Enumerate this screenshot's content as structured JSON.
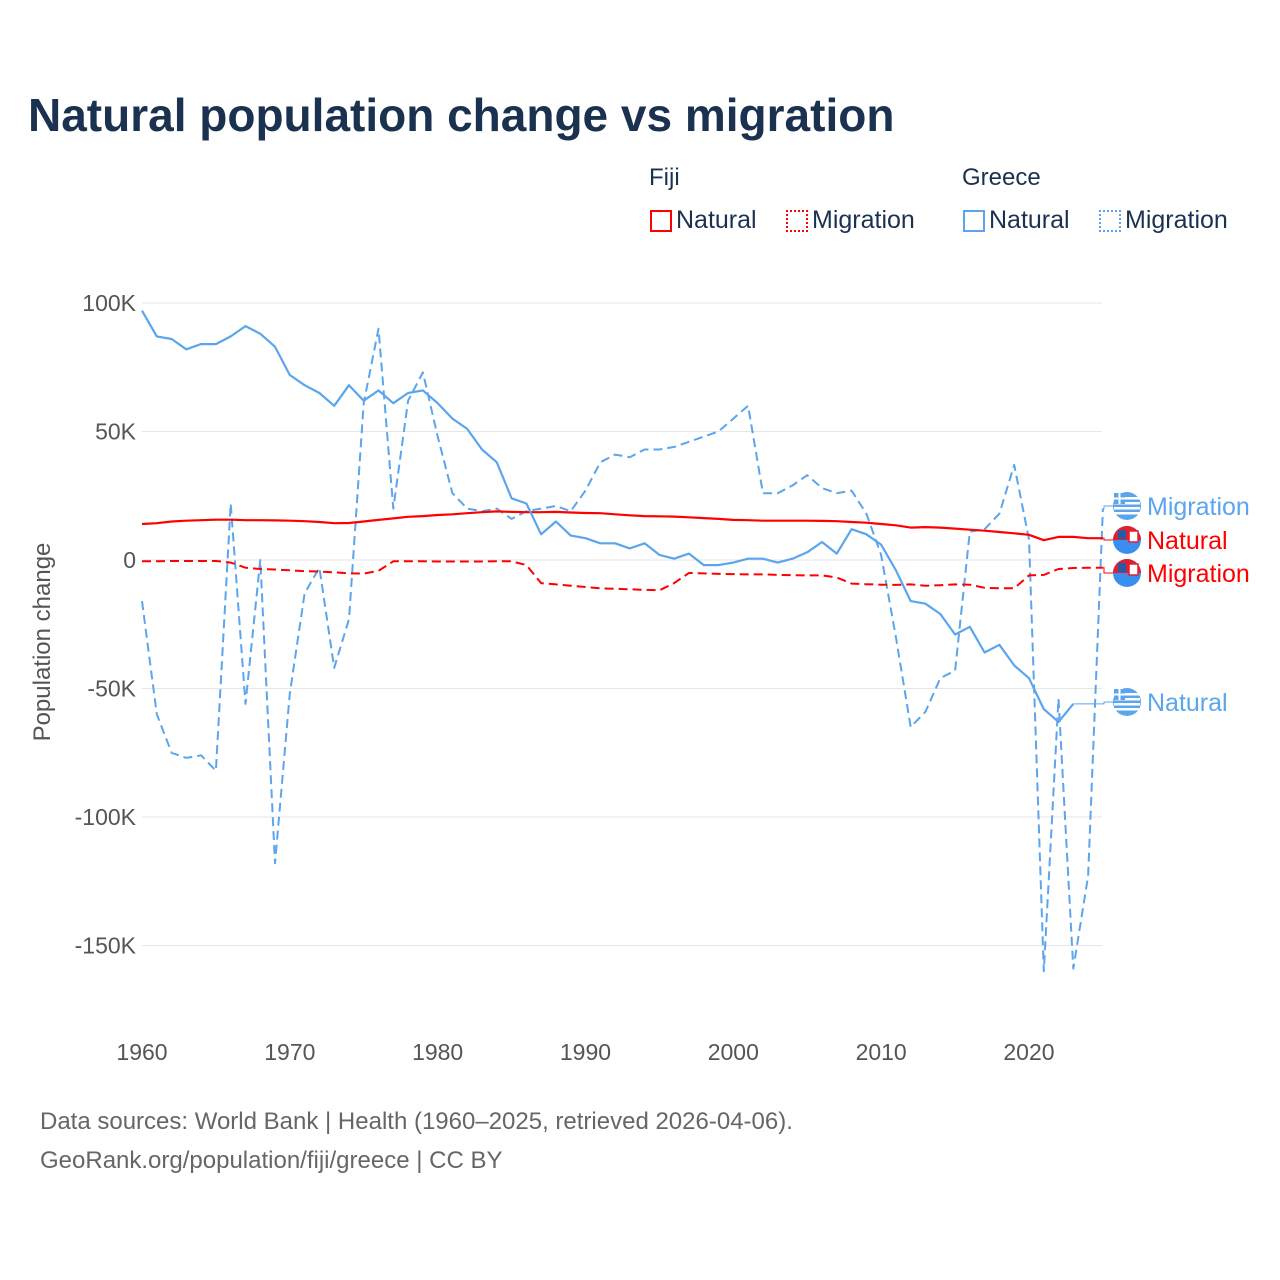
{
  "title": "Natural population change vs migration",
  "legend": {
    "groups": [
      {
        "name": "Fiji",
        "items": [
          {
            "label": "Natural",
            "style": "solid"
          },
          {
            "label": "Migration",
            "style": "dotted"
          }
        ],
        "color": "#ff0000"
      },
      {
        "name": "Greece",
        "items": [
          {
            "label": "Natural",
            "style": "solid"
          },
          {
            "label": "Migration",
            "style": "dotted"
          }
        ],
        "color": "#5aa5ee"
      }
    ]
  },
  "footer": {
    "line1": "Data sources: World Bank | Health (1960–2025, retrieved 2026-04-06).",
    "line2": "GeoRank.org/population/fiji/greece | CC BY"
  },
  "chart_data": {
    "type": "line",
    "title": "Natural population change vs migration",
    "xlabel": "",
    "ylabel": "Population change",
    "xlim": [
      1960,
      2025
    ],
    "ylim": [
      -160000,
      100000
    ],
    "xticks": [
      1960,
      1970,
      1980,
      1990,
      2000,
      2010,
      2020
    ],
    "yticks": [
      {
        "v": 100000,
        "label": "100K"
      },
      {
        "v": 50000,
        "label": "50K"
      },
      {
        "v": 0,
        "label": "0"
      },
      {
        "v": -50000,
        "label": "-50K"
      },
      {
        "v": -100000,
        "label": "-100K"
      },
      {
        "v": -150000,
        "label": "-150K"
      }
    ],
    "grid": true,
    "legend_position": "top-right",
    "series": [
      {
        "name": "Greece Migration",
        "end_label": "Migration",
        "country": "Greece",
        "color": "#5aa5ee",
        "dash": true,
        "start": 1960,
        "values": [
          -16000,
          -60000,
          -75000,
          -77000,
          -76000,
          -82000,
          22000,
          -56000,
          0,
          -118000,
          -52000,
          -13000,
          -3000,
          -42000,
          -23000,
          61000,
          90000,
          20000,
          62000,
          73000,
          48000,
          26000,
          20000,
          19000,
          20000,
          16000,
          19000,
          20000,
          21000,
          19000,
          27000,
          38000,
          41000,
          40000,
          43000,
          43000,
          44000,
          46000,
          48000,
          50000,
          55000,
          60000,
          26000,
          26000,
          29000,
          33000,
          28000,
          26000,
          27000,
          18000,
          2000,
          -30000,
          -65000,
          -59000,
          -46000,
          -43000,
          11000,
          12000,
          18000,
          37000,
          8000,
          -160000,
          -54000,
          -159000,
          -123000,
          20000
        ]
      },
      {
        "name": "Fiji Natural",
        "end_label": "Natural",
        "country": "Fiji",
        "color": "#ff0000",
        "dash": false,
        "start": 1960,
        "values": [
          14000,
          14300,
          15000,
          15300,
          15500,
          15700,
          15700,
          15500,
          15500,
          15400,
          15300,
          15100,
          14800,
          14300,
          14400,
          15000,
          15600,
          16200,
          16800,
          17100,
          17500,
          17800,
          18200,
          18600,
          18900,
          18700,
          18600,
          18600,
          18700,
          18500,
          18300,
          18200,
          17800,
          17400,
          17100,
          17000,
          16900,
          16600,
          16300,
          16000,
          15600,
          15500,
          15300,
          15300,
          15300,
          15300,
          15200,
          15100,
          14800,
          14500,
          14000,
          13500,
          12600,
          12800,
          12600,
          12200,
          11800,
          11400,
          10900,
          10400,
          9800,
          7700,
          9000,
          9000,
          8500,
          8500
        ]
      },
      {
        "name": "Fiji Migration",
        "end_label": "Migration",
        "country": "Fiji",
        "color": "#ff0000",
        "dash": true,
        "start": 1960,
        "values": [
          -500,
          -500,
          -400,
          -400,
          -400,
          -400,
          -1000,
          -3000,
          -3500,
          -3700,
          -4000,
          -4300,
          -4500,
          -4800,
          -5200,
          -5300,
          -4200,
          -500,
          -500,
          -500,
          -600,
          -600,
          -600,
          -600,
          -500,
          -500,
          -2000,
          -9000,
          -9500,
          -10000,
          -10500,
          -11000,
          -11200,
          -11400,
          -11600,
          -11800,
          -9000,
          -5000,
          -5200,
          -5400,
          -5500,
          -5600,
          -5600,
          -5800,
          -5900,
          -6000,
          -6000,
          -6800,
          -9200,
          -9400,
          -9600,
          -9700,
          -9500,
          -10000,
          -9800,
          -9500,
          -9600,
          -10800,
          -11000,
          -11000,
          -6000,
          -5800,
          -3500,
          -3100,
          -3000,
          -3000
        ]
      },
      {
        "name": "Greece Natural",
        "end_label": "Natural",
        "country": "Greece",
        "color": "#5aa5ee",
        "dash": false,
        "start": 1960,
        "values": [
          97000,
          87000,
          86000,
          82000,
          84000,
          84000,
          87000,
          91000,
          88000,
          83000,
          72000,
          68000,
          65000,
          60000,
          68000,
          62000,
          66000,
          61000,
          65000,
          66000,
          61000,
          55000,
          51000,
          43000,
          38000,
          24000,
          22000,
          10000,
          15000,
          9500,
          8500,
          6500,
          6500,
          4500,
          6500,
          2000,
          500,
          2500,
          -2000,
          -2000,
          -1000,
          500,
          500,
          -1000,
          500,
          3000,
          7000,
          2500,
          12000,
          10000,
          6000,
          -4000,
          -16000,
          -17000,
          -21000,
          -29000,
          -26000,
          -36000,
          -33000,
          -41000,
          -46000,
          -58000,
          -63000,
          -56000
        ]
      }
    ]
  }
}
